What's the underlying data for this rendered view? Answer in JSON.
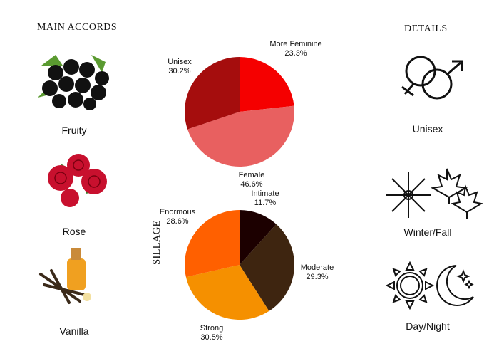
{
  "main_accords": {
    "heading": "MAIN ACCORDS",
    "items": [
      {
        "label": "Fruity",
        "icon": "blackcurrant-image"
      },
      {
        "label": "Rose",
        "icon": "rose-image"
      },
      {
        "label": "Vanilla",
        "icon": "vanilla-image"
      }
    ]
  },
  "details": {
    "heading": "DETAILS",
    "items": [
      {
        "label": "Unisex",
        "icon": "gender-icon"
      },
      {
        "label": "Winter/Fall",
        "icon": "snowflake-leaves-icon"
      },
      {
        "label": "Day/Night",
        "icon": "sun-moon-icon"
      }
    ]
  },
  "chart_data": [
    {
      "type": "pie",
      "title": "",
      "slices": [
        {
          "label": "More Feminine",
          "value": 23.3,
          "display": "23.3%",
          "color": "#f50000"
        },
        {
          "label": "Female",
          "value": 46.6,
          "display": "46.6%",
          "color": "#e86060"
        },
        {
          "label": "Unisex",
          "value": 30.2,
          "display": "30.2%",
          "color": "#a50d0d"
        }
      ]
    },
    {
      "type": "pie",
      "title": "SILLAGE",
      "slices": [
        {
          "label": "Intimate",
          "value": 11.7,
          "display": "11.7%",
          "color": "#1c0000"
        },
        {
          "label": "Moderate",
          "value": 29.3,
          "display": "29.3%",
          "color": "#3e2510"
        },
        {
          "label": "Strong",
          "value": 30.5,
          "display": "30.5%",
          "color": "#f59000"
        },
        {
          "label": "Enormous",
          "value": 28.6,
          "display": "28.6%",
          "color": "#ff6000"
        }
      ]
    }
  ]
}
